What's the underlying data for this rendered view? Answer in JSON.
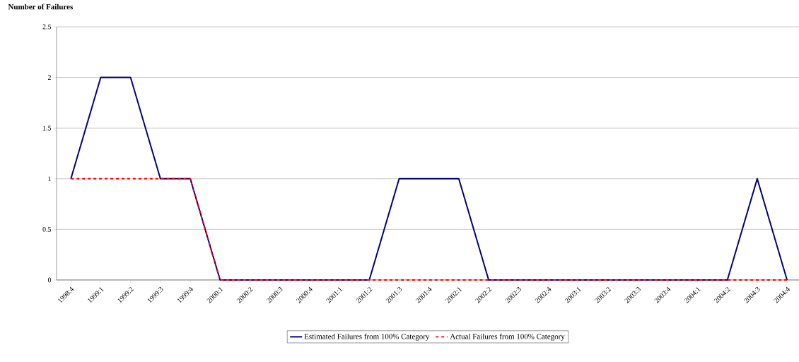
{
  "chart_data": {
    "type": "line",
    "ylabel": "Number of Failures",
    "categories": [
      "1998:4",
      "1999:1",
      "1999:2",
      "1999:3",
      "1999:4",
      "2000:1",
      "2000:2",
      "2000:3",
      "2000:4",
      "2001:1",
      "2001:2",
      "2001:3",
      "2001:4",
      "2002:1",
      "2002:2",
      "2002:3",
      "2002:4",
      "2003:1",
      "2003:2",
      "2003:3",
      "2003:4",
      "2004:1",
      "2004:2",
      "2004:3",
      "2004:4"
    ],
    "series": [
      {
        "name": "Estimated Failures from 100% Category",
        "color": "#000080",
        "line_style": "solid",
        "values": [
          1,
          2,
          2,
          1,
          1,
          0,
          0,
          0,
          0,
          0,
          0,
          1,
          1,
          1,
          0,
          0,
          0,
          0,
          0,
          0,
          0,
          0,
          0,
          1,
          0
        ]
      },
      {
        "name": "Actual Failures from 100% Category",
        "color": "#ff0000",
        "line_style": "dashed",
        "values": [
          1,
          1,
          1,
          1,
          1,
          0,
          0,
          0,
          0,
          0,
          0,
          0,
          0,
          0,
          0,
          0,
          0,
          0,
          0,
          0,
          0,
          0,
          0,
          0,
          0
        ]
      }
    ],
    "ylim": [
      0,
      2.5
    ],
    "yticks": [
      0,
      0.5,
      1,
      1.5,
      2,
      2.5
    ],
    "grid": "y",
    "legend": "bottom",
    "marker": "none"
  }
}
